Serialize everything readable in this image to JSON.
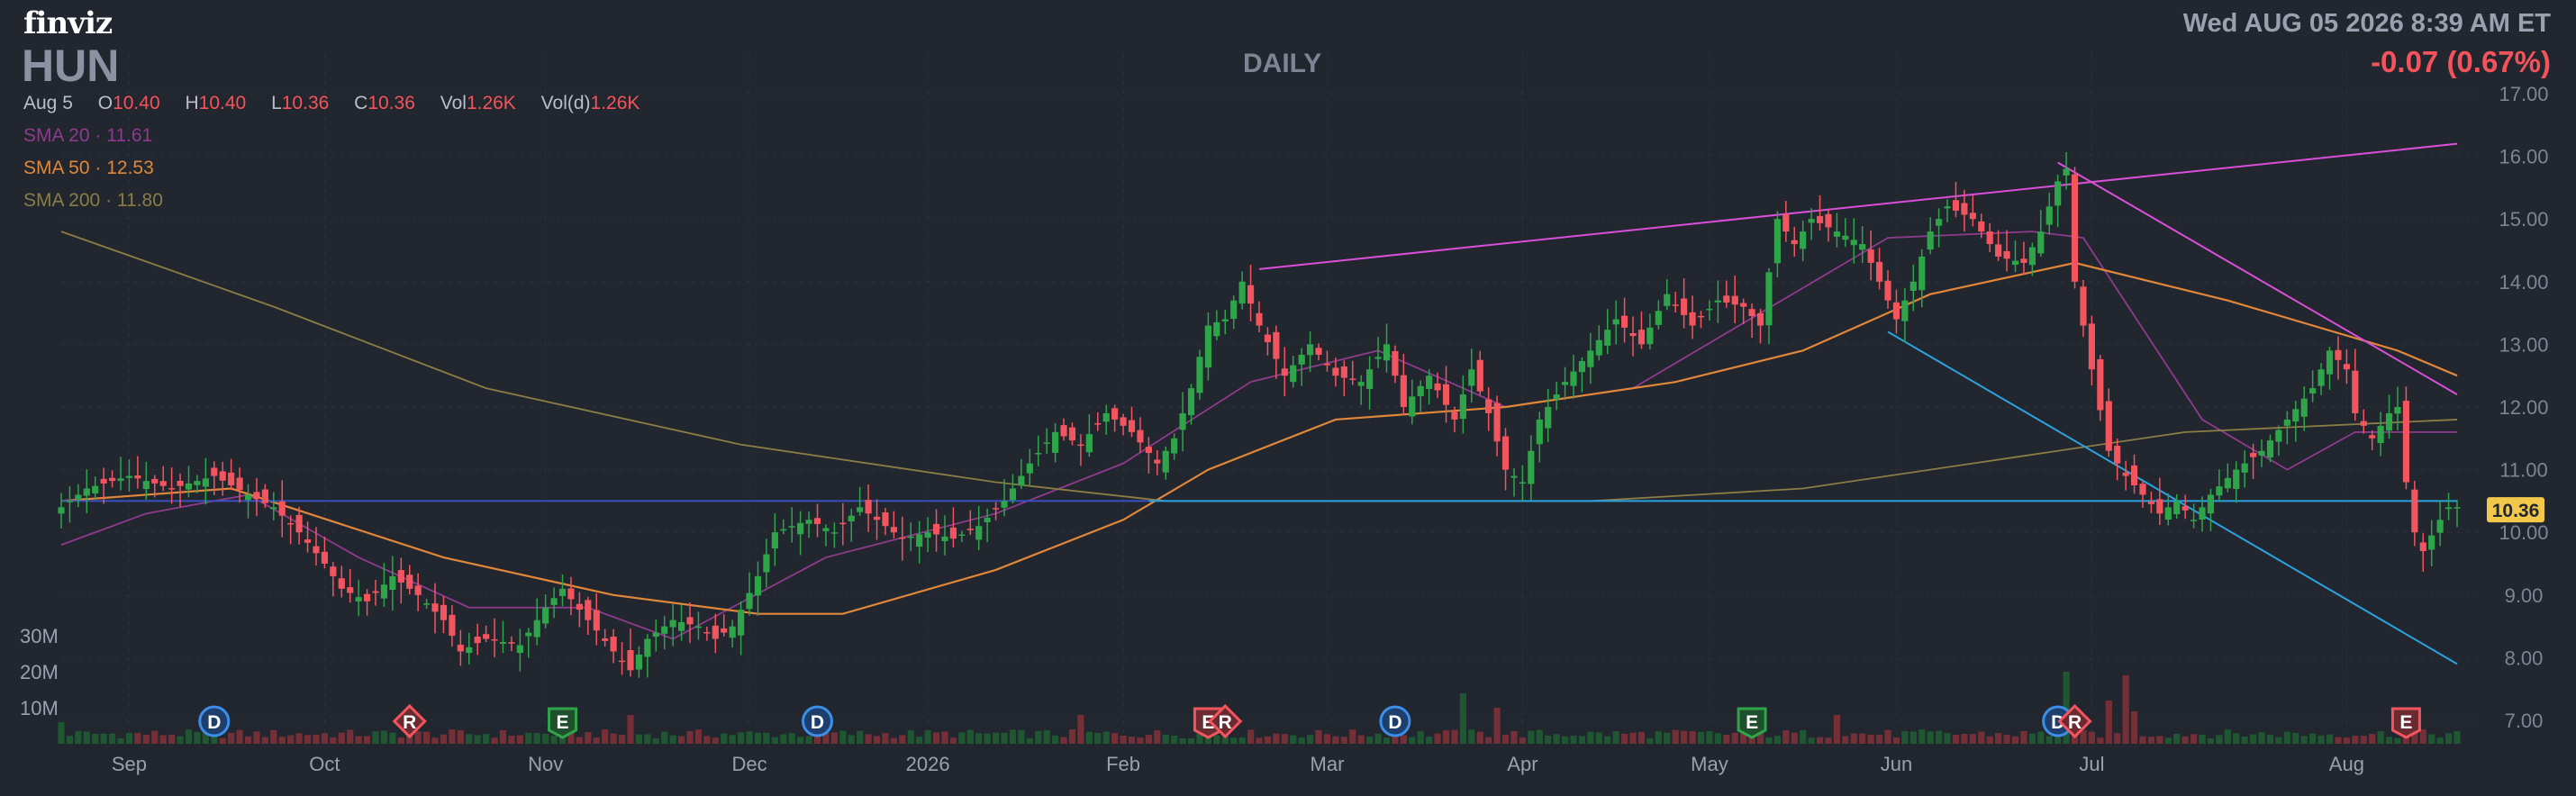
{
  "header": {
    "logo": "finviz",
    "ticker": "HUN",
    "period": "DAILY",
    "datetime": "Wed AUG 05 2026 8:39 AM ET",
    "change": "-0.07 (0.67%)"
  },
  "ohlc": {
    "date": "Aug 5",
    "open_label": "O",
    "open": "10.40",
    "high_label": "H",
    "high": "10.40",
    "low_label": "L",
    "low": "10.36",
    "close_label": "C",
    "close": "10.36",
    "vol_label": "Vol",
    "vol": "1.26K",
    "vold_label": "Vol(d)",
    "vold": "1.26K"
  },
  "sma": [
    {
      "label": "SMA 20",
      "value": "11.61",
      "color": "#8e3b8e"
    },
    {
      "label": "SMA 50",
      "value": "12.53",
      "color": "#e0873a"
    },
    {
      "label": "SMA 200",
      "value": "11.80",
      "color": "#8a7d45"
    }
  ],
  "colors": {
    "up": "#2fa54a",
    "down": "#f2555e",
    "trendline_magenta": "#d94fd9",
    "trendline_blue": "#2aa3e0",
    "support_line": "#3a6fd0",
    "price_tag": "#f2c84b"
  },
  "chart_data": {
    "type": "candlestick",
    "price_axis": {
      "min": 7,
      "max": 17,
      "ticks": [
        "17.00",
        "16.00",
        "15.00",
        "14.00",
        "13.00",
        "12.00",
        "11.00",
        "10.00",
        "9.00",
        "8.00",
        "7.00"
      ]
    },
    "volume_axis": {
      "ticks": [
        "30M",
        "20M",
        "10M"
      ]
    },
    "x_labels": [
      "Sep",
      "Oct",
      "Nov",
      "Dec",
      "2026",
      "Feb",
      "Mar",
      "Apr",
      "May",
      "Jun",
      "Jul",
      "Aug"
    ],
    "last_price": "10.36",
    "anchors": [
      [
        0,
        10.4
      ],
      [
        3,
        10.7
      ],
      [
        8,
        10.9
      ],
      [
        13,
        10.7
      ],
      [
        18,
        10.9
      ],
      [
        22,
        10.6
      ],
      [
        25,
        10.4
      ],
      [
        28,
        10.0
      ],
      [
        31,
        9.5
      ],
      [
        33,
        9.1
      ],
      [
        36,
        8.9
      ],
      [
        39,
        9.3
      ],
      [
        42,
        9.0
      ],
      [
        45,
        8.6
      ],
      [
        47,
        8.1
      ],
      [
        50,
        8.3
      ],
      [
        54,
        8.2
      ],
      [
        57,
        8.8
      ],
      [
        59,
        9.1
      ],
      [
        62,
        8.6
      ],
      [
        65,
        8.1
      ],
      [
        67,
        7.8
      ],
      [
        69,
        8.3
      ],
      [
        72,
        8.6
      ],
      [
        75,
        8.5
      ],
      [
        77,
        8.3
      ],
      [
        79,
        8.5
      ],
      [
        82,
        9.3
      ],
      [
        84,
        10.0
      ],
      [
        88,
        10.2
      ],
      [
        91,
        10.0
      ],
      [
        94,
        10.4
      ],
      [
        96,
        10.2
      ],
      [
        99,
        9.9
      ],
      [
        102,
        10.0
      ],
      [
        105,
        9.9
      ],
      [
        108,
        10.1
      ],
      [
        111,
        10.5
      ],
      [
        114,
        11.1
      ],
      [
        117,
        11.6
      ],
      [
        120,
        11.4
      ],
      [
        123,
        11.9
      ],
      [
        126,
        11.6
      ],
      [
        129,
        11.1
      ],
      [
        131,
        11.5
      ],
      [
        133,
        12.3
      ],
      [
        135,
        13.3
      ],
      [
        137,
        13.4
      ],
      [
        139,
        14.0
      ],
      [
        141,
        13.3
      ],
      [
        144,
        12.5
      ],
      [
        147,
        13.0
      ],
      [
        150,
        12.5
      ],
      [
        153,
        12.4
      ],
      [
        156,
        13.0
      ],
      [
        158,
        12.0
      ],
      [
        161,
        12.5
      ],
      [
        164,
        11.8
      ],
      [
        166,
        12.6
      ],
      [
        168,
        11.9
      ],
      [
        170,
        11.0
      ],
      [
        172,
        10.8
      ],
      [
        174,
        11.8
      ],
      [
        177,
        12.4
      ],
      [
        180,
        12.9
      ],
      [
        183,
        13.4
      ],
      [
        186,
        13.0
      ],
      [
        189,
        13.8
      ],
      [
        192,
        13.3
      ],
      [
        195,
        13.7
      ],
      [
        198,
        13.6
      ],
      [
        200,
        13.3
      ],
      [
        202,
        15.0
      ],
      [
        204,
        14.6
      ],
      [
        206,
        15.0
      ],
      [
        209,
        14.8
      ],
      [
        212,
        14.6
      ],
      [
        214,
        14.0
      ],
      [
        216,
        13.4
      ],
      [
        218,
        14.0
      ],
      [
        220,
        14.8
      ],
      [
        222,
        15.2
      ],
      [
        225,
        15.0
      ],
      [
        228,
        14.4
      ],
      [
        231,
        14.3
      ],
      [
        233,
        14.8
      ],
      [
        235,
        15.6
      ],
      [
        236,
        15.8
      ],
      [
        237,
        14.0
      ],
      [
        239,
        12.6
      ],
      [
        241,
        11.3
      ],
      [
        243,
        10.9
      ],
      [
        245,
        10.6
      ],
      [
        247,
        10.3
      ],
      [
        249,
        10.5
      ],
      [
        251,
        10.2
      ],
      [
        253,
        10.6
      ],
      [
        256,
        11.0
      ],
      [
        259,
        11.3
      ],
      [
        262,
        11.8
      ],
      [
        265,
        12.3
      ],
      [
        267,
        12.9
      ],
      [
        269,
        12.6
      ],
      [
        270,
        11.9
      ],
      [
        272,
        11.5
      ],
      [
        274,
        11.9
      ],
      [
        275,
        12.0
      ],
      [
        276,
        10.8
      ],
      [
        277,
        10.0
      ],
      [
        278,
        9.7
      ],
      [
        280,
        10.2
      ],
      [
        281,
        10.4
      ]
    ],
    "volume_spikes": {
      "0": 6,
      "67": 8,
      "120": 8,
      "165": 14,
      "169": 10,
      "209": 8,
      "236": 20,
      "241": 12,
      "243": 19,
      "244": 9
    },
    "sma_series": [
      {
        "name": "SMA 20",
        "points": [
          [
            0,
            9.8
          ],
          [
            10,
            10.3
          ],
          [
            22,
            10.6
          ],
          [
            35,
            9.6
          ],
          [
            48,
            8.8
          ],
          [
            62,
            8.8
          ],
          [
            72,
            8.3
          ],
          [
            90,
            9.6
          ],
          [
            110,
            10.3
          ],
          [
            125,
            11.1
          ],
          [
            140,
            12.4
          ],
          [
            155,
            12.9
          ],
          [
            170,
            12.0
          ],
          [
            185,
            12.3
          ],
          [
            200,
            13.5
          ],
          [
            215,
            14.7
          ],
          [
            232,
            14.8
          ],
          [
            238,
            14.7
          ],
          [
            252,
            11.8
          ],
          [
            262,
            11.0
          ],
          [
            270,
            11.6
          ],
          [
            282,
            11.6
          ]
        ]
      },
      {
        "name": "SMA 50",
        "points": [
          [
            0,
            10.5
          ],
          [
            20,
            10.7
          ],
          [
            45,
            9.6
          ],
          [
            65,
            9.0
          ],
          [
            82,
            8.7
          ],
          [
            92,
            8.7
          ],
          [
            110,
            9.4
          ],
          [
            125,
            10.2
          ],
          [
            135,
            11.0
          ],
          [
            150,
            11.8
          ],
          [
            170,
            12.0
          ],
          [
            190,
            12.4
          ],
          [
            205,
            12.9
          ],
          [
            220,
            13.8
          ],
          [
            237,
            14.3
          ],
          [
            255,
            13.7
          ],
          [
            275,
            12.9
          ],
          [
            282,
            12.5
          ]
        ]
      },
      {
        "name": "SMA 200",
        "points": [
          [
            0,
            14.8
          ],
          [
            25,
            13.6
          ],
          [
            50,
            12.3
          ],
          [
            80,
            11.4
          ],
          [
            110,
            10.8
          ],
          [
            130,
            10.5
          ],
          [
            150,
            10.5
          ],
          [
            180,
            10.5
          ],
          [
            205,
            10.7
          ],
          [
            230,
            11.2
          ],
          [
            250,
            11.6
          ],
          [
            282,
            11.8
          ]
        ]
      }
    ],
    "lines": [
      {
        "name": "resistance-upper",
        "from": [
          141,
          14.2
        ],
        "to": [
          282,
          16.2
        ],
        "color": "#d94fd9"
      },
      {
        "name": "falling-resistance",
        "from": [
          235,
          15.9
        ],
        "to": [
          282,
          12.2
        ],
        "color": "#d94fd9"
      },
      {
        "name": "falling-support",
        "from": [
          215,
          13.2
        ],
        "to": [
          282,
          7.9
        ],
        "color": "#2aa3e0"
      },
      {
        "name": "horizontal-support",
        "from": [
          128,
          10.5
        ],
        "to": [
          282,
          10.5
        ],
        "color": "#2aa3e0"
      },
      {
        "name": "horizontal-support-left",
        "from": [
          0,
          10.5
        ],
        "to": [
          128,
          10.5
        ],
        "color": "#3a4fc0"
      }
    ],
    "events": [
      {
        "type": "D",
        "bar": 18
      },
      {
        "type": "R",
        "bar": 41
      },
      {
        "type": "E",
        "bar": 59
      },
      {
        "type": "D",
        "bar": 89
      },
      {
        "type": "E",
        "bar": 135
      },
      {
        "type": "R",
        "bar": 137
      },
      {
        "type": "D",
        "bar": 157
      },
      {
        "type": "E",
        "bar": 199
      },
      {
        "type": "D",
        "bar": 235
      },
      {
        "type": "R",
        "bar": 237
      },
      {
        "type": "E",
        "bar": 276
      }
    ]
  }
}
